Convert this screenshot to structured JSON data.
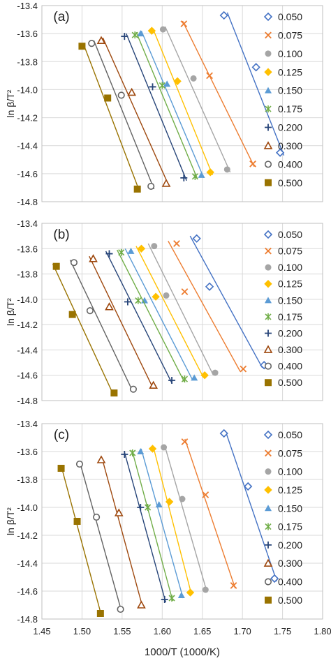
{
  "series_styles": [
    {
      "name": "0.050",
      "marker": "diamond-open",
      "color": "#4472C4"
    },
    {
      "name": "0.075",
      "marker": "x",
      "color": "#ED7D31"
    },
    {
      "name": "0.100",
      "marker": "circle-filled",
      "color": "#A5A5A5"
    },
    {
      "name": "0.125",
      "marker": "diamond-filled",
      "color": "#FFC000"
    },
    {
      "name": "0.150",
      "marker": "triangle-filled",
      "color": "#5B9BD5"
    },
    {
      "name": "0.175",
      "marker": "star",
      "color": "#70AD47"
    },
    {
      "name": "0.200",
      "marker": "plus",
      "color": "#264478"
    },
    {
      "name": "0.300",
      "marker": "triangle-open",
      "color": "#9E480E"
    },
    {
      "name": "0.400",
      "marker": "circle-open",
      "color": "#636363"
    },
    {
      "name": "0.500",
      "marker": "square-filled",
      "color": "#997300"
    }
  ],
  "chart_data": [
    {
      "type": "scatter",
      "panel_label": "(a)",
      "xlim": [
        1.45,
        1.8
      ],
      "ylim": [
        -14.8,
        -13.4
      ],
      "ylabel": "ln β/T²",
      "xlabel": "",
      "yticks": [
        "-13.4",
        "-13.6",
        "-13.8",
        "-14.0",
        "-14.2",
        "-14.4",
        "-14.6",
        "-14.8"
      ],
      "grid": true,
      "legend": "right",
      "fit_lines": true,
      "series": [
        {
          "name": "0.050",
          "x": [
            1.677,
            1.717,
            1.747
          ],
          "y": [
            -13.47,
            -13.84,
            -14.45
          ]
        },
        {
          "name": "0.075",
          "x": [
            1.627,
            1.659,
            1.713
          ],
          "y": [
            -13.53,
            -13.9,
            -14.53
          ]
        },
        {
          "name": "0.100",
          "x": [
            1.601,
            1.639,
            1.681
          ],
          "y": [
            -13.57,
            -13.92,
            -14.57
          ]
        },
        {
          "name": "0.125",
          "x": [
            1.587,
            1.619,
            1.66
          ],
          "y": [
            -13.58,
            -13.94,
            -14.59
          ]
        },
        {
          "name": "0.150",
          "x": [
            1.573,
            1.606,
            1.649
          ],
          "y": [
            -13.6,
            -13.96,
            -14.61
          ]
        },
        {
          "name": "0.175",
          "x": [
            1.566,
            1.6,
            1.641
          ],
          "y": [
            -13.61,
            -13.97,
            -14.62
          ]
        },
        {
          "name": "0.200",
          "x": [
            1.553,
            1.588,
            1.627
          ],
          "y": [
            -13.62,
            -13.98,
            -14.63
          ]
        },
        {
          "name": "0.300",
          "x": [
            1.524,
            1.562,
            1.605
          ],
          "y": [
            -13.65,
            -14.02,
            -14.67
          ]
        },
        {
          "name": "0.400",
          "x": [
            1.512,
            1.549,
            1.586
          ],
          "y": [
            -13.67,
            -14.04,
            -14.69
          ]
        },
        {
          "name": "0.500",
          "x": [
            1.5,
            1.532,
            1.569
          ],
          "y": [
            -13.69,
            -14.06,
            -14.71
          ]
        }
      ]
    },
    {
      "type": "scatter",
      "panel_label": "(b)",
      "xlim": [
        1.45,
        1.8
      ],
      "ylim": [
        -14.8,
        -13.4
      ],
      "ylabel": "ln β/T²",
      "xlabel": "",
      "yticks": [
        "-13.4",
        "-13.6",
        "-13.8",
        "-14.0",
        "-14.2",
        "-14.4",
        "-14.6",
        "-14.8"
      ],
      "grid": true,
      "legend": "right",
      "fit_lines": true,
      "series": [
        {
          "name": "0.050",
          "x": [
            1.643,
            1.659,
            1.727
          ],
          "y": [
            -13.52,
            -13.9,
            -14.52
          ]
        },
        {
          "name": "0.075",
          "x": [
            1.618,
            1.628,
            1.701
          ],
          "y": [
            -13.56,
            -13.94,
            -14.55
          ]
        },
        {
          "name": "0.100",
          "x": [
            1.59,
            1.605,
            1.666
          ],
          "y": [
            -13.58,
            -13.97,
            -14.58
          ]
        },
        {
          "name": "0.125",
          "x": [
            1.574,
            1.592,
            1.653
          ],
          "y": [
            -13.6,
            -13.98,
            -14.6
          ]
        },
        {
          "name": "0.150",
          "x": [
            1.561,
            1.578,
            1.64
          ],
          "y": [
            -13.62,
            -14.01,
            -14.62
          ]
        },
        {
          "name": "0.175",
          "x": [
            1.549,
            1.57,
            1.628
          ],
          "y": [
            -13.63,
            -14.01,
            -14.63
          ]
        },
        {
          "name": "0.200",
          "x": [
            1.534,
            1.557,
            1.612
          ],
          "y": [
            -13.64,
            -14.02,
            -14.64
          ]
        },
        {
          "name": "0.300",
          "x": [
            1.514,
            1.534,
            1.589
          ],
          "y": [
            -13.68,
            -14.06,
            -14.68
          ]
        },
        {
          "name": "0.400",
          "x": [
            1.49,
            1.51,
            1.564
          ],
          "y": [
            -13.71,
            -14.09,
            -14.71
          ]
        },
        {
          "name": "0.500",
          "x": [
            1.468,
            1.488,
            1.54
          ],
          "y": [
            -13.74,
            -14.12,
            -14.74
          ]
        }
      ]
    },
    {
      "type": "scatter",
      "panel_label": "(c)",
      "xlim": [
        1.45,
        1.8
      ],
      "ylim": [
        -14.8,
        -13.4
      ],
      "ylabel": "ln β/T²",
      "xlabel": "1000/T (1000/K)",
      "xticks": [
        "1.45",
        "1.50",
        "1.55",
        "1.60",
        "1.65",
        "1.70",
        "1.75",
        "1.80"
      ],
      "yticks": [
        "-13.4",
        "-13.6",
        "-13.8",
        "-14.0",
        "-14.2",
        "-14.4",
        "-14.6",
        "-14.8"
      ],
      "grid": true,
      "legend": "right",
      "fit_lines": true,
      "series": [
        {
          "name": "0.050",
          "x": [
            1.677,
            1.707,
            1.74
          ],
          "y": [
            -13.47,
            -13.85,
            -14.51
          ]
        },
        {
          "name": "0.075",
          "x": [
            1.628,
            1.654,
            1.689
          ],
          "y": [
            -13.53,
            -13.91,
            -14.56
          ]
        },
        {
          "name": "0.100",
          "x": [
            1.602,
            1.625,
            1.654
          ],
          "y": [
            -13.57,
            -13.94,
            -14.59
          ]
        },
        {
          "name": "0.125",
          "x": [
            1.588,
            1.609,
            1.635
          ],
          "y": [
            -13.58,
            -13.96,
            -14.61
          ]
        },
        {
          "name": "0.150",
          "x": [
            1.573,
            1.596,
            1.624
          ],
          "y": [
            -13.6,
            -13.98,
            -14.63
          ]
        },
        {
          "name": "0.175",
          "x": [
            1.563,
            1.582,
            1.612
          ],
          "y": [
            -13.61,
            -14.0,
            -14.65
          ]
        },
        {
          "name": "0.200",
          "x": [
            1.553,
            1.573,
            1.603
          ],
          "y": [
            -13.62,
            -14.0,
            -14.66
          ]
        },
        {
          "name": "0.300",
          "x": [
            1.524,
            1.546,
            1.574
          ],
          "y": [
            -13.66,
            -14.04,
            -14.7
          ]
        },
        {
          "name": "0.400",
          "x": [
            1.497,
            1.518,
            1.548
          ],
          "y": [
            -13.69,
            -14.07,
            -14.73
          ]
        },
        {
          "name": "0.500",
          "x": [
            1.474,
            1.494,
            1.523
          ],
          "y": [
            -13.72,
            -14.1,
            -14.76
          ]
        }
      ]
    }
  ]
}
